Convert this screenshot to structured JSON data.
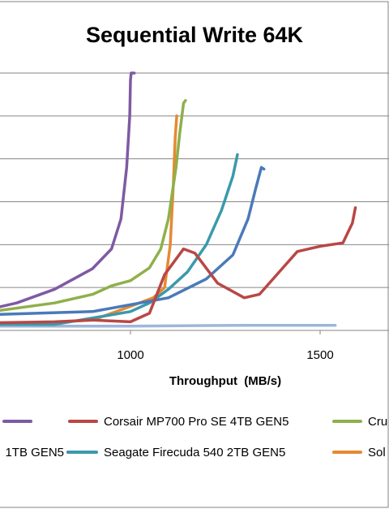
{
  "chart_data": {
    "type": "line",
    "title": "Sequential Write 64K",
    "xlabel": "Throughput  (MB/s)",
    "ylabel": "",
    "x_ticks": [
      1000,
      1500
    ],
    "x_tick_labels": [
      "1000",
      "1500"
    ],
    "x_visible_range": [
      360,
      1540
    ],
    "y_visible_range": [
      0,
      3.3
    ],
    "y_gridlines": [
      0.5,
      1.0,
      1.5,
      2.0,
      2.5,
      3.0
    ],
    "grid": "horizontal",
    "legend_position": "bottom",
    "series": [
      {
        "legend_text": "GEN5",
        "color": "#7f5aa3",
        "points": [
          [
            360,
            0.18
          ],
          [
            600,
            0.22
          ],
          [
            700,
            0.32
          ],
          [
            800,
            0.48
          ],
          [
            900,
            0.72
          ],
          [
            950,
            0.95
          ],
          [
            975,
            1.3
          ],
          [
            990,
            1.9
          ],
          [
            998,
            2.5
          ],
          [
            1000,
            2.92
          ],
          [
            1002,
            3.0
          ],
          [
            1010,
            3.0
          ]
        ]
      },
      {
        "legend_text": "Corsair MP700 Pro SE 4TB GEN5",
        "color": "#b94745",
        "points": [
          [
            360,
            0.07
          ],
          [
            800,
            0.1
          ],
          [
            900,
            0.12
          ],
          [
            1000,
            0.1
          ],
          [
            1050,
            0.2
          ],
          [
            1090,
            0.65
          ],
          [
            1140,
            0.95
          ],
          [
            1170,
            0.9
          ],
          [
            1230,
            0.55
          ],
          [
            1300,
            0.38
          ],
          [
            1340,
            0.42
          ],
          [
            1400,
            0.72
          ],
          [
            1440,
            0.92
          ],
          [
            1500,
            0.98
          ],
          [
            1560,
            1.02
          ],
          [
            1585,
            1.25
          ],
          [
            1593,
            1.43
          ]
        ]
      },
      {
        "legend_text": "Cru",
        "color": "#8fb04a",
        "points": [
          [
            360,
            0.18
          ],
          [
            600,
            0.2
          ],
          [
            800,
            0.32
          ],
          [
            900,
            0.42
          ],
          [
            950,
            0.52
          ],
          [
            1000,
            0.58
          ],
          [
            1050,
            0.73
          ],
          [
            1080,
            0.95
          ],
          [
            1100,
            1.3
          ],
          [
            1120,
            1.9
          ],
          [
            1130,
            2.3
          ],
          [
            1140,
            2.65
          ],
          [
            1145,
            2.68
          ]
        ]
      },
      {
        "legend_text": "1TB GEN5",
        "color": "#4a7ab8",
        "points": [
          [
            360,
            0.18
          ],
          [
            600,
            0.18
          ],
          [
            900,
            0.22
          ],
          [
            1100,
            0.38
          ],
          [
            1200,
            0.6
          ],
          [
            1270,
            0.88
          ],
          [
            1310,
            1.3
          ],
          [
            1330,
            1.65
          ],
          [
            1345,
            1.9
          ],
          [
            1352,
            1.88
          ]
        ]
      },
      {
        "legend_text": "Seagate Firecuda 540 2TB GEN5",
        "color": "#3a9aaa",
        "points": [
          [
            360,
            0.07
          ],
          [
            800,
            0.07
          ],
          [
            1000,
            0.22
          ],
          [
            1050,
            0.32
          ],
          [
            1100,
            0.48
          ],
          [
            1150,
            0.68
          ],
          [
            1200,
            1.0
          ],
          [
            1240,
            1.4
          ],
          [
            1270,
            1.8
          ],
          [
            1282,
            2.05
          ]
        ]
      },
      {
        "legend_text": "Sol",
        "color": "#e58a33",
        "points": [
          [
            360,
            0.07
          ],
          [
            700,
            0.07
          ],
          [
            900,
            0.12
          ],
          [
            1000,
            0.28
          ],
          [
            1060,
            0.38
          ],
          [
            1090,
            0.5
          ],
          [
            1105,
            1.0
          ],
          [
            1113,
            1.7
          ],
          [
            1118,
            2.25
          ],
          [
            1122,
            2.5
          ]
        ]
      },
      {
        "legend_text": "",
        "color": "#9db7db",
        "points": [
          [
            360,
            0.05
          ],
          [
            1000,
            0.05
          ],
          [
            1300,
            0.06
          ],
          [
            1540,
            0.06
          ]
        ]
      }
    ]
  }
}
